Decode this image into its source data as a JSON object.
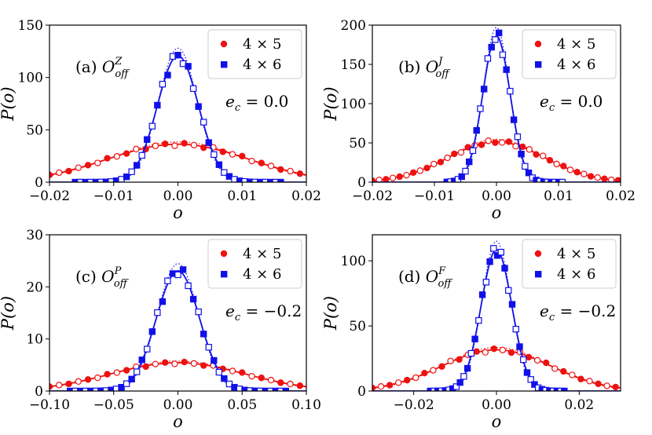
{
  "chart_data": [
    {
      "type": "line",
      "title_prefix": "(a) ",
      "title_main": "O",
      "title_sup": "Z",
      "title_sub": "off",
      "xlabel": "o",
      "ylabel": "P(o)",
      "xlim": [
        -0.02,
        0.02
      ],
      "ylim": [
        0,
        150
      ],
      "xticks": [
        -0.02,
        -0.01,
        0.0,
        0.01,
        0.02
      ],
      "xtick_labels": [
        "−0.02",
        "−0.01",
        "0.00",
        "0.01",
        "0.02"
      ],
      "yticks": [
        0,
        50,
        100,
        150
      ],
      "ytick_labels": [
        "0",
        "50",
        "100",
        "150"
      ],
      "annotation": "e_c = 0.0",
      "annotation_parts": [
        "e",
        "c",
        " = 0.0"
      ],
      "legend": [
        "4 × 5",
        "4 × 6"
      ],
      "legend_position": "top-right",
      "series": [
        {
          "name": "4 × 5",
          "color": "#ee1111",
          "marker": "circle",
          "kind": "gaussian",
          "sigma": 0.011,
          "points_step": 0.0015,
          "gap": false
        },
        {
          "name": "4 × 6",
          "color": "#1010e8",
          "marker": "square",
          "kind": "gaussian",
          "sigma": 0.0032,
          "points_step": 0.0008,
          "points_range": [
            -0.016,
            0.016
          ],
          "gap": false
        }
      ]
    },
    {
      "type": "line",
      "title_prefix": "(b) ",
      "title_main": "O",
      "title_sup": "J",
      "title_sub": "off",
      "xlabel": "o",
      "ylabel": "P(o)",
      "xlim": [
        -0.02,
        0.02
      ],
      "ylim": [
        0,
        200
      ],
      "xticks": [
        -0.02,
        -0.01,
        0.0,
        0.01,
        0.02
      ],
      "xtick_labels": [
        "−0.02",
        "−0.01",
        "0.00",
        "0.01",
        "0.02"
      ],
      "yticks": [
        0,
        50,
        100,
        150,
        200
      ],
      "ytick_labels": [
        "0",
        "50",
        "100",
        "150",
        "200"
      ],
      "annotation": "e_c = 0.0",
      "annotation_parts": [
        "e",
        "c",
        " = 0.0"
      ],
      "legend": [
        "4 × 5",
        "4 × 6"
      ],
      "legend_position": "top-right",
      "series": [
        {
          "name": "4 × 5",
          "color": "#ee1111",
          "marker": "circle",
          "kind": "gaussian",
          "sigma": 0.0078,
          "points_step": 0.0011,
          "gap": false
        },
        {
          "name": "4 × 6",
          "color": "#1010e8",
          "marker": "square",
          "kind": "gaussian",
          "sigma": 0.0022,
          "points_step": 0.0006,
          "points_range": [
            -0.008,
            0.011
          ],
          "gap": false
        }
      ]
    },
    {
      "type": "line",
      "title_prefix": "(c) ",
      "title_main": "O",
      "title_sup": "P",
      "title_sub": "off",
      "xlabel": "o",
      "ylabel": "P(o)",
      "xlim": [
        -0.1,
        0.1
      ],
      "ylim": [
        0,
        30
      ],
      "xticks": [
        -0.1,
        -0.05,
        0.0,
        0.05,
        0.1
      ],
      "xtick_labels": [
        "−0.10",
        "−0.05",
        "0.00",
        "0.05",
        "0.10"
      ],
      "yticks": [
        0,
        10,
        20,
        30
      ],
      "ytick_labels": [
        "0",
        "10",
        "20",
        "30"
      ],
      "annotation": "e_c = −0.2",
      "annotation_parts": [
        "e",
        "c",
        " = −0.2"
      ],
      "legend": [
        "4 × 5",
        "4 × 6"
      ],
      "legend_position": "top-right",
      "series": [
        {
          "name": "4 × 5",
          "color": "#ee1111",
          "marker": "circle",
          "kind": "gaussian",
          "sigma": 0.052,
          "peak_scale": 0.75,
          "points_step": 0.0075,
          "gap": false
        },
        {
          "name": "4 × 6",
          "color": "#1010e8",
          "marker": "square",
          "kind": "gaussian",
          "sigma": 0.0168,
          "peak_scale": 0.98,
          "points_step": 0.004,
          "points_range": [
            -0.084,
            0.084
          ],
          "gap": false
        }
      ]
    },
    {
      "type": "line",
      "title_prefix": "(d) ",
      "title_main": "O",
      "title_sup": "F",
      "title_sub": "off",
      "xlabel": "o",
      "ylabel": "P(o)",
      "xlim": [
        -0.03,
        0.03
      ],
      "ylim": [
        0,
        120
      ],
      "xticks": [
        -0.02,
        0.0,
        0.02
      ],
      "xtick_labels": [
        "−0.02",
        "0.00",
        "0.02"
      ],
      "yticks": [
        0,
        50,
        100
      ],
      "ytick_labels": [
        "0",
        "50",
        "100"
      ],
      "annotation": "e_c = −0.2",
      "annotation_parts": [
        "e",
        "c",
        " = −0.2"
      ],
      "legend": [
        "4 × 5",
        "4 × 6"
      ],
      "legend_position": "top-right",
      "series": [
        {
          "name": "4 × 5",
          "color": "#ee1111",
          "marker": "circle",
          "kind": "gaussian",
          "sigma": 0.0132,
          "points_step": 0.0021,
          "gap": false
        },
        {
          "name": "4 × 6",
          "color": "#1010e8",
          "marker": "square",
          "kind": "gaussian",
          "sigma": 0.0037,
          "points_step": 0.0009,
          "points_range": [
            -0.016,
            0.017
          ],
          "gap": false
        }
      ]
    }
  ]
}
